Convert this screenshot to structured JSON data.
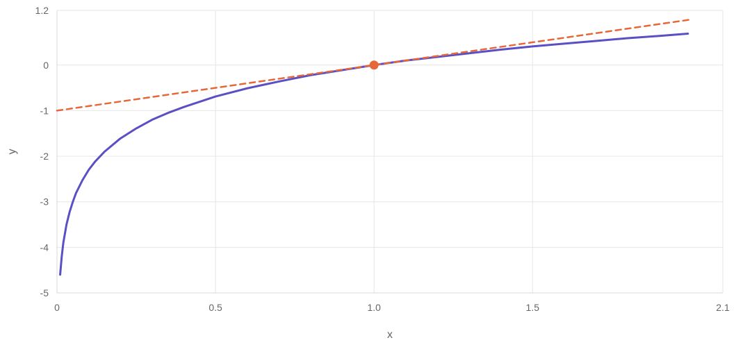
{
  "chart_data": {
    "type": "line",
    "title": "",
    "xlabel": "x",
    "ylabel": "y",
    "xlim": [
      0,
      2.1
    ],
    "ylim": [
      -5,
      1.2
    ],
    "x_ticks": [
      0,
      0.5,
      1.0,
      1.5,
      2.1
    ],
    "x_tick_labels": [
      "0",
      "0.5",
      "1.0",
      "1.5",
      "2.1"
    ],
    "y_ticks": [
      -5,
      -4,
      -3,
      -2,
      -1,
      0,
      1.2
    ],
    "y_tick_labels": [
      "-5",
      "-4",
      "-3",
      "-2",
      "-1",
      "0",
      "1.2"
    ],
    "grid": true,
    "legend": "none",
    "series": [
      {
        "color": "#5a4fc4",
        "style": "solid",
        "points": [
          [
            0.01,
            -4.6
          ],
          [
            0.015,
            -4.2
          ],
          [
            0.02,
            -3.9
          ],
          [
            0.03,
            -3.5
          ],
          [
            0.04,
            -3.22
          ],
          [
            0.05,
            -3.0
          ],
          [
            0.06,
            -2.81
          ],
          [
            0.08,
            -2.53
          ],
          [
            0.1,
            -2.3
          ],
          [
            0.12,
            -2.12
          ],
          [
            0.15,
            -1.9
          ],
          [
            0.2,
            -1.61
          ],
          [
            0.25,
            -1.39
          ],
          [
            0.3,
            -1.2
          ],
          [
            0.35,
            -1.05
          ],
          [
            0.4,
            -0.92
          ],
          [
            0.5,
            -0.69
          ],
          [
            0.6,
            -0.51
          ],
          [
            0.7,
            -0.36
          ],
          [
            0.8,
            -0.22
          ],
          [
            0.9,
            -0.11
          ],
          [
            1.0,
            0.0
          ],
          [
            1.1,
            0.1
          ],
          [
            1.2,
            0.18
          ],
          [
            1.3,
            0.26
          ],
          [
            1.4,
            0.34
          ],
          [
            1.5,
            0.41
          ],
          [
            1.6,
            0.47
          ],
          [
            1.7,
            0.53
          ],
          [
            1.8,
            0.59
          ],
          [
            1.9,
            0.64
          ],
          [
            1.99,
            0.69
          ]
        ]
      },
      {
        "color": "#e4683a",
        "style": "dashed",
        "points": [
          [
            0,
            -1.0
          ],
          [
            2.0,
            1.0
          ]
        ]
      }
    ],
    "markers": [
      {
        "x": 1.0,
        "y": 0.0,
        "color": "#e4683a"
      }
    ]
  }
}
